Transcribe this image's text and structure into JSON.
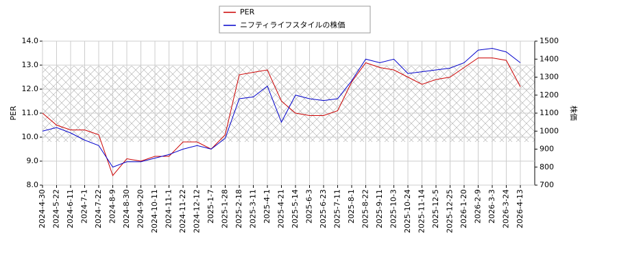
{
  "chart_data": {
    "type": "line",
    "categories": [
      "2024-4-30",
      "2024-5-22",
      "2024-6-11",
      "2024-7-1",
      "2024-7-22",
      "2024-8-9",
      "2024-8-30",
      "2024-9-20",
      "2024-10-11",
      "2024-11-1",
      "2024-11-22",
      "2024-12-12",
      "2025-1-7",
      "2025-1-28",
      "2025-2-18",
      "2025-3-11",
      "2025-4-1",
      "2025-4-21",
      "2025-5-14",
      "2025-6-3",
      "2025-6-23",
      "2025-7-11",
      "2025-8-1",
      "2025-8-22",
      "2025-9-11",
      "2025-10-3",
      "2025-10-24",
      "2025-11-14",
      "2025-12-5",
      "2025-12-25",
      "2026-1-20",
      "2026-2-9",
      "2026-3-3",
      "2026-3-24",
      "2026-4-13"
    ],
    "series": [
      {
        "name": "PER",
        "color": "#cc0000",
        "axis": "y",
        "values": [
          11.0,
          10.5,
          10.3,
          10.3,
          10.1,
          8.4,
          9.1,
          9.0,
          9.2,
          9.2,
          9.8,
          9.8,
          9.5,
          10.1,
          12.6,
          12.7,
          12.8,
          11.5,
          11.0,
          10.9,
          10.9,
          11.1,
          12.3,
          13.1,
          12.9,
          12.8,
          12.5,
          12.2,
          12.4,
          12.5,
          12.9,
          13.3,
          13.3,
          13.2,
          12.1
        ]
      },
      {
        "name": "ニフティライフスタイルの株価",
        "color": "#0000cc",
        "axis": "y2",
        "values": [
          1000,
          1020,
          990,
          950,
          920,
          800,
          830,
          830,
          850,
          870,
          900,
          920,
          900,
          960,
          1180,
          1190,
          1250,
          1050,
          1200,
          1180,
          1170,
          1180,
          1280,
          1400,
          1380,
          1400,
          1320,
          1330,
          1340,
          1350,
          1380,
          1450,
          1460,
          1440,
          1380
        ]
      }
    ],
    "ylabel": "PER",
    "y2label": "株価",
    "ylim": [
      8.0,
      14.0
    ],
    "yticks": [
      {
        "value": 8,
        "label": "8.0"
      },
      {
        "value": 9,
        "label": "9.0"
      },
      {
        "value": 10,
        "label": "10.0"
      },
      {
        "value": 11,
        "label": "11.0"
      },
      {
        "value": 12,
        "label": "12.0"
      },
      {
        "value": 13,
        "label": "13.0"
      },
      {
        "value": 14,
        "label": "14.0"
      }
    ],
    "y2lim": [
      700,
      1500
    ],
    "y2ticks": [
      700,
      800,
      900,
      1000,
      1100,
      1200,
      1300,
      1400,
      1500
    ],
    "grid": true
  }
}
